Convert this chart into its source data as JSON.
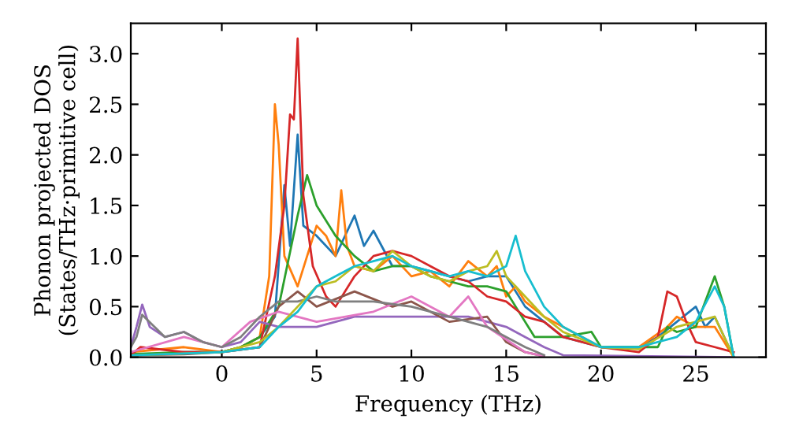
{
  "chart_data": {
    "type": "line",
    "xlabel": "Frequency (THz)",
    "ylabel": "Phonon projected DOS\n(States/THz·primitive cell)",
    "xlim": [
      -4.8,
      28.7
    ],
    "ylim": [
      0,
      3.3
    ],
    "xticks": [
      0,
      5,
      10,
      15,
      20,
      25
    ],
    "yticks": [
      {
        "value": 0,
        "label": "0.0"
      },
      {
        "value": 0.5,
        "label": "0.5"
      },
      {
        "value": 1,
        "label": "1.0"
      },
      {
        "value": 1.5,
        "label": "1.5"
      },
      {
        "value": 2,
        "label": "2.0"
      },
      {
        "value": 2.5,
        "label": "2.5"
      },
      {
        "value": 3,
        "label": "3.0"
      }
    ],
    "grid": false,
    "legend": false,
    "marker": "none",
    "line_style": "solid",
    "series": [
      {
        "color": "#1f77b4",
        "x": [
          -4.8,
          -2,
          0,
          1,
          2,
          2.8,
          3.3,
          3.6,
          4.0,
          4.3,
          5,
          6,
          7,
          7.5,
          8,
          9,
          10,
          11,
          12,
          13,
          14,
          15,
          16,
          17,
          18,
          20,
          22,
          23,
          24,
          25,
          25.5,
          26,
          27
        ],
        "values": [
          0.02,
          0.05,
          0.05,
          0.1,
          0.2,
          0.4,
          1.7,
          1.1,
          2.2,
          1.3,
          1.2,
          1.0,
          1.4,
          1.1,
          1.25,
          0.9,
          0.9,
          0.85,
          0.8,
          0.75,
          0.8,
          0.8,
          0.5,
          0.35,
          0.2,
          0.1,
          0.1,
          0.2,
          0.35,
          0.5,
          0.3,
          0.4,
          0.0
        ]
      },
      {
        "color": "#ff7f0e",
        "x": [
          -4.8,
          -2,
          0,
          1,
          2,
          2.5,
          2.8,
          3.0,
          3.3,
          4,
          5,
          5.5,
          6,
          6.3,
          6.6,
          7,
          8,
          9,
          10,
          11,
          12,
          13,
          14,
          14.5,
          15,
          15.5,
          16,
          17,
          19,
          20,
          22,
          23.5,
          24,
          25,
          26,
          26.5,
          27
        ],
        "values": [
          0.05,
          0.1,
          0.05,
          0.1,
          0.2,
          0.8,
          2.5,
          2.1,
          1.0,
          0.7,
          1.3,
          1.2,
          1.0,
          1.65,
          1.1,
          0.9,
          0.85,
          1.0,
          0.8,
          0.85,
          0.7,
          0.95,
          0.8,
          0.9,
          0.6,
          0.7,
          0.55,
          0.4,
          0.2,
          0.1,
          0.1,
          0.3,
          0.4,
          0.3,
          0.3,
          0.15,
          0.0
        ]
      },
      {
        "color": "#2ca02c",
        "x": [
          -4.8,
          -2,
          0,
          1,
          2,
          3,
          4,
          4.5,
          5,
          6,
          7,
          8,
          9,
          10,
          11,
          12,
          13,
          14,
          15,
          15.5,
          16.5,
          18,
          19.5,
          20,
          23,
          23.5,
          24,
          25,
          26,
          26.5,
          27
        ],
        "values": [
          0.03,
          0.05,
          0.05,
          0.1,
          0.2,
          0.5,
          1.4,
          1.8,
          1.5,
          1.2,
          1.0,
          0.85,
          0.9,
          0.9,
          0.8,
          0.75,
          0.7,
          0.7,
          0.65,
          0.5,
          0.2,
          0.2,
          0.25,
          0.1,
          0.1,
          0.3,
          0.25,
          0.3,
          0.8,
          0.5,
          0.0
        ]
      },
      {
        "color": "#d62728",
        "x": [
          -4.8,
          -4.3,
          -2,
          0,
          2,
          2.8,
          3.3,
          3.6,
          3.8,
          4.0,
          4.3,
          4.8,
          5.5,
          6,
          7,
          8,
          9,
          10,
          11,
          12,
          13,
          14,
          15,
          16,
          17,
          18,
          20,
          22,
          23,
          23.5,
          24,
          24.5,
          25,
          26,
          27
        ],
        "values": [
          0.02,
          0.1,
          0.05,
          0.05,
          0.1,
          0.8,
          1.5,
          2.4,
          2.35,
          3.15,
          1.6,
          0.9,
          0.6,
          0.5,
          0.8,
          1.0,
          1.05,
          1.0,
          0.9,
          0.8,
          0.75,
          0.6,
          0.55,
          0.4,
          0.35,
          0.2,
          0.1,
          0.05,
          0.2,
          0.65,
          0.6,
          0.35,
          0.15,
          0.1,
          0.05
        ]
      },
      {
        "color": "#9467bd",
        "x": [
          -4.8,
          -4.5,
          -4.2,
          -3.8,
          -3,
          -2,
          -1,
          0,
          1,
          2,
          3,
          5,
          7,
          10,
          13,
          15,
          16,
          17,
          18,
          27
        ],
        "values": [
          0.1,
          0.3,
          0.52,
          0.3,
          0.2,
          0.25,
          0.15,
          0.1,
          0.15,
          0.35,
          0.3,
          0.3,
          0.4,
          0.4,
          0.4,
          0.3,
          0.2,
          0.1,
          0.02,
          0.0
        ]
      },
      {
        "color": "#8c564b",
        "x": [
          -4.8,
          -2,
          0,
          2,
          3,
          4,
          5,
          7,
          9,
          10,
          12,
          14,
          15,
          16,
          17
        ],
        "values": [
          0.02,
          0.03,
          0.05,
          0.1,
          0.5,
          0.65,
          0.5,
          0.65,
          0.5,
          0.55,
          0.35,
          0.4,
          0.15,
          0.05,
          0.01
        ]
      },
      {
        "color": "#e377c2",
        "x": [
          -4.8,
          -2,
          0,
          1.5,
          3,
          5,
          8,
          10,
          12,
          13,
          14,
          16,
          17
        ],
        "values": [
          0.05,
          0.2,
          0.1,
          0.35,
          0.45,
          0.35,
          0.45,
          0.6,
          0.4,
          0.6,
          0.3,
          0.05,
          0.01
        ]
      },
      {
        "color": "#7f7f7f",
        "x": [
          -4.8,
          -4.5,
          -4.2,
          -3,
          -2,
          -1,
          0,
          1,
          2,
          3,
          4,
          5,
          6,
          8,
          10,
          12,
          14,
          15,
          16,
          17
        ],
        "values": [
          0.1,
          0.2,
          0.42,
          0.2,
          0.25,
          0.15,
          0.1,
          0.2,
          0.4,
          0.55,
          0.55,
          0.6,
          0.55,
          0.55,
          0.5,
          0.4,
          0.3,
          0.2,
          0.1,
          0.02
        ]
      },
      {
        "color": "#bcbd22",
        "x": [
          -4.8,
          0,
          2,
          3,
          4,
          5,
          6,
          7,
          8,
          9,
          10,
          11,
          12,
          13,
          14,
          14.5,
          15,
          16,
          17,
          18,
          20,
          22,
          24,
          25,
          26,
          27
        ],
        "values": [
          0.02,
          0.05,
          0.15,
          0.3,
          0.5,
          0.7,
          0.75,
          0.9,
          0.85,
          1.05,
          0.9,
          0.8,
          0.75,
          0.85,
          0.9,
          1.05,
          0.8,
          0.6,
          0.4,
          0.25,
          0.1,
          0.08,
          0.3,
          0.35,
          0.4,
          0.0
        ]
      },
      {
        "color": "#17becf",
        "x": [
          -4.8,
          0,
          2,
          3,
          4,
          5,
          6,
          7,
          8,
          9,
          10,
          11,
          12,
          13,
          14,
          15,
          15.5,
          16,
          17,
          18,
          20,
          22,
          24,
          25,
          26,
          26.5,
          27
        ],
        "values": [
          0.02,
          0.05,
          0.1,
          0.3,
          0.45,
          0.7,
          0.8,
          0.9,
          0.95,
          1.0,
          0.9,
          0.85,
          0.8,
          0.85,
          0.8,
          0.9,
          1.2,
          0.85,
          0.5,
          0.3,
          0.1,
          0.1,
          0.2,
          0.35,
          0.7,
          0.5,
          0.0
        ]
      }
    ]
  }
}
